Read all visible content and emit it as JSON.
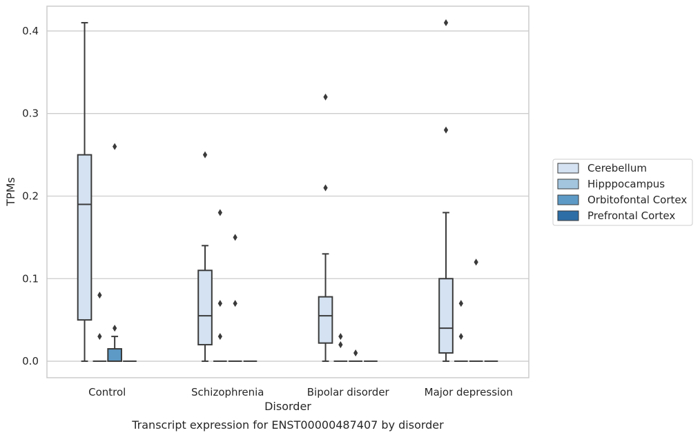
{
  "chart_data": {
    "type": "box",
    "xlabel": "Disorder",
    "ylabel": "TPMs",
    "caption": "Transcript expression for ENST00000487407 by disorder",
    "ylim": [
      -0.02,
      0.43
    ],
    "yticks": [
      0.0,
      0.1,
      0.2,
      0.3,
      0.4
    ],
    "ytick_labels": [
      "0.0",
      "0.1",
      "0.2",
      "0.3",
      "0.4"
    ],
    "grid": "horizontal",
    "legend_position": "right",
    "categories": [
      "Control",
      "Schizophrenia",
      "Bipolar disorder",
      "Major depression"
    ],
    "series": [
      {
        "name": "Cerebellum",
        "color": "#d4e2f1",
        "boxes": [
          {
            "min": 0.0,
            "q1": 0.05,
            "median": 0.19,
            "q3": 0.25,
            "max": 0.41,
            "outliers": []
          },
          {
            "min": 0.0,
            "q1": 0.02,
            "median": 0.055,
            "q3": 0.11,
            "max": 0.14,
            "outliers": [
              0.25
            ]
          },
          {
            "min": 0.0,
            "q1": 0.022,
            "median": 0.055,
            "q3": 0.078,
            "max": 0.13,
            "outliers": [
              0.21,
              0.32
            ]
          },
          {
            "min": 0.0,
            "q1": 0.01,
            "median": 0.04,
            "q3": 0.1,
            "max": 0.18,
            "outliers": [
              0.28,
              0.41
            ]
          }
        ]
      },
      {
        "name": "Hipppocampus",
        "color": "#a3c5de",
        "boxes": [
          {
            "min": 0.0,
            "q1": 0.0,
            "median": 0.0,
            "q3": 0.0,
            "max": 0.0,
            "outliers": [
              0.03,
              0.08
            ]
          },
          {
            "min": 0.0,
            "q1": 0.0,
            "median": 0.0,
            "q3": 0.0,
            "max": 0.0,
            "outliers": [
              0.03,
              0.07,
              0.18
            ]
          },
          {
            "min": 0.0,
            "q1": 0.0,
            "median": 0.0,
            "q3": 0.0,
            "max": 0.0,
            "outliers": [
              0.02,
              0.03
            ]
          },
          {
            "min": 0.0,
            "q1": 0.0,
            "median": 0.0,
            "q3": 0.0,
            "max": 0.0,
            "outliers": [
              0.03,
              0.07
            ]
          }
        ]
      },
      {
        "name": "Orbitofontal Cortex",
        "color": "#5d9ac6",
        "boxes": [
          {
            "min": 0.0,
            "q1": 0.0,
            "median": 0.0,
            "q3": 0.015,
            "max": 0.03,
            "outliers": [
              0.04,
              0.26
            ]
          },
          {
            "min": 0.0,
            "q1": 0.0,
            "median": 0.0,
            "q3": 0.0,
            "max": 0.0,
            "outliers": [
              0.07,
              0.15
            ]
          },
          {
            "min": 0.0,
            "q1": 0.0,
            "median": 0.0,
            "q3": 0.0,
            "max": 0.0,
            "outliers": [
              0.01
            ]
          },
          {
            "min": 0.0,
            "q1": 0.0,
            "median": 0.0,
            "q3": 0.0,
            "max": 0.0,
            "outliers": [
              0.12
            ]
          }
        ]
      },
      {
        "name": "Prefrontal Cortex",
        "color": "#2d6ea6",
        "boxes": [
          {
            "min": 0.0,
            "q1": 0.0,
            "median": 0.0,
            "q3": 0.0,
            "max": 0.0,
            "outliers": []
          },
          {
            "min": 0.0,
            "q1": 0.0,
            "median": 0.0,
            "q3": 0.0,
            "max": 0.0,
            "outliers": []
          },
          {
            "min": 0.0,
            "q1": 0.0,
            "median": 0.0,
            "q3": 0.0,
            "max": 0.0,
            "outliers": []
          },
          {
            "min": 0.0,
            "q1": 0.0,
            "median": 0.0,
            "q3": 0.0,
            "max": 0.0,
            "outliers": []
          }
        ]
      }
    ]
  }
}
